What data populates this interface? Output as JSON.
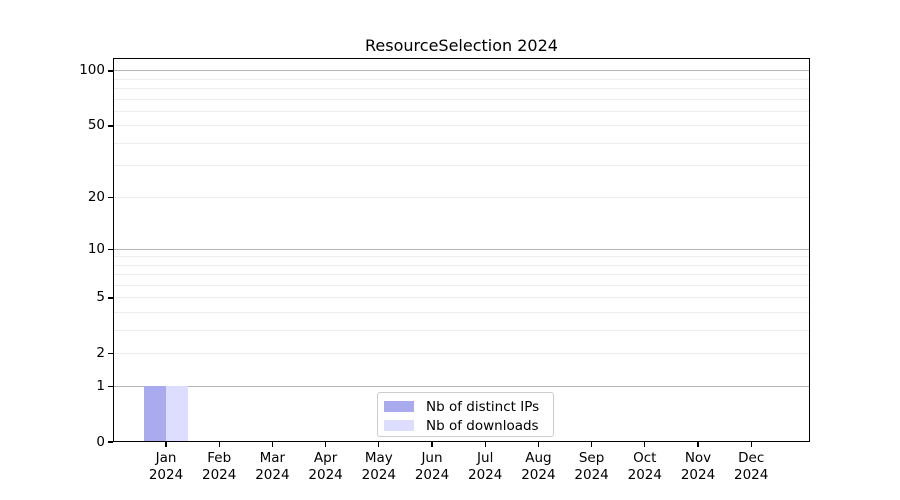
{
  "chart_data": {
    "type": "bar",
    "title": "ResourceSelection 2024",
    "categories": [
      "Jan",
      "Feb",
      "Mar",
      "Apr",
      "May",
      "Jun",
      "Jul",
      "Aug",
      "Sep",
      "Oct",
      "Nov",
      "Dec"
    ],
    "year_label": "2024",
    "series": [
      {
        "name": "Nb of distinct IPs",
        "color": "#aaaaee",
        "values": [
          1,
          0,
          0,
          0,
          0,
          0,
          0,
          0,
          0,
          0,
          0,
          0
        ]
      },
      {
        "name": "Nb of downloads",
        "color": "#ddddff",
        "values": [
          1,
          0,
          0,
          0,
          0,
          0,
          0,
          0,
          0,
          0,
          0,
          0
        ]
      }
    ],
    "yscale": "log1p",
    "ylim": [
      0,
      100
    ],
    "yticks": [
      0,
      1,
      2,
      5,
      10,
      20,
      50,
      100
    ],
    "major_gridlines": [
      1,
      10,
      100
    ],
    "minor_gridlines": [
      2,
      3,
      4,
      5,
      6,
      7,
      8,
      9,
      20,
      30,
      40,
      50,
      60,
      70,
      80,
      90
    ],
    "xlabel": "",
    "ylabel": "",
    "grid": "horizontal",
    "legend_position": "bottom-center-inside"
  },
  "colors": {
    "background": "#ffffff",
    "axis_frame": "#000000",
    "major_grid": "#b4b4b4",
    "minor_grid": "#ececec",
    "legend_border": "#cccccc",
    "bar_distinct_ips": "#aaaaee",
    "bar_downloads": "#ddddff"
  }
}
